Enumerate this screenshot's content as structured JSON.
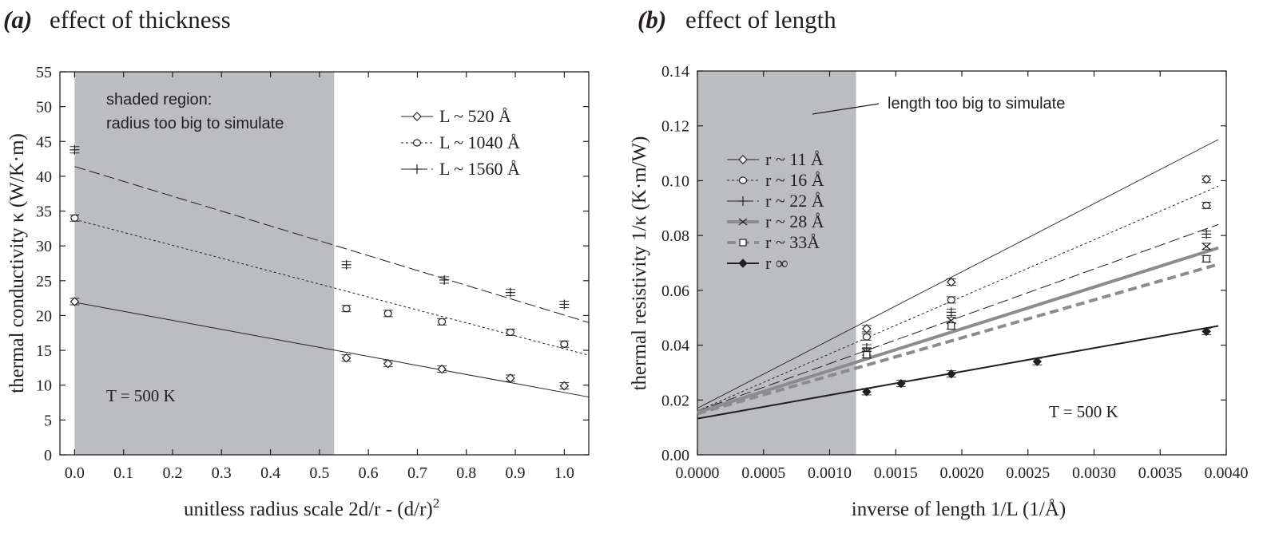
{
  "chart_data": [
    {
      "type": "scatter",
      "panel_letter": "(a)",
      "title": "effect of thickness",
      "xlabel": "unitless radius scale 2d/r - (d/r)",
      "xlabel_sup": "2",
      "ylabel": "thermal conductivity κ (W/K·m)",
      "xlim": [
        -0.03,
        1.05
      ],
      "ylim": [
        0,
        55
      ],
      "xticks": [
        "0.0",
        "0.1",
        "0.2",
        "0.3",
        "0.4",
        "0.5",
        "0.6",
        "0.7",
        "0.8",
        "0.9",
        "1.0"
      ],
      "yticks": [
        "0",
        "5",
        "10",
        "15",
        "20",
        "25",
        "30",
        "35",
        "40",
        "45",
        "50",
        "55"
      ],
      "shaded_region": {
        "x_from": 0.0,
        "x_to": 0.53,
        "label_lines": [
          "shaded region:",
          "radius too big to simulate"
        ]
      },
      "annotation": "T = 500 K",
      "series": [
        {
          "name": "L ~ 520 Å",
          "marker": "diamond",
          "dash": "solid",
          "x": [
            0.0,
            0.555,
            0.64,
            0.75,
            0.89,
            1.0
          ],
          "y": [
            22.0,
            13.9,
            13.1,
            12.3,
            11.0,
            9.9
          ],
          "fit": [
            [
              0.0,
              21.9
            ],
            [
              1.05,
              8.3
            ]
          ]
        },
        {
          "name": "L ~ 1040 Å",
          "marker": "circle",
          "dash": "dotted",
          "x": [
            0.0,
            0.555,
            0.64,
            0.75,
            0.89,
            1.0
          ],
          "y": [
            34.0,
            21.0,
            20.3,
            19.1,
            17.6,
            15.9
          ],
          "fit": [
            [
              0.0,
              33.8
            ],
            [
              1.05,
              14.3
            ]
          ]
        },
        {
          "name": "L ~ 1560 Å",
          "marker": "plus",
          "dash": "dashed",
          "x": [
            0.0,
            0.555,
            0.755,
            0.89,
            1.0
          ],
          "y": [
            43.8,
            27.3,
            25.1,
            23.3,
            21.6
          ],
          "fit": [
            [
              0.0,
              41.4
            ],
            [
              1.05,
              19.0
            ]
          ]
        }
      ]
    },
    {
      "type": "scatter",
      "panel_letter": "(b)",
      "title": "effect of length",
      "xlabel": "inverse of length 1/L (1/Å)",
      "ylabel": "thermal resistivity 1/κ (K·m/W)",
      "xlim": [
        0,
        0.004
      ],
      "ylim": [
        0,
        0.14
      ],
      "xticks": [
        "0.0000",
        "0.0005",
        "0.0010",
        "0.0015",
        "0.0020",
        "0.0025",
        "0.0030",
        "0.0035",
        "0.0040"
      ],
      "yticks": [
        "0.00",
        "0.02",
        "0.04",
        "0.06",
        "0.08",
        "0.10",
        "0.12",
        "0.14"
      ],
      "shaded_region": {
        "x_from": 0.0,
        "x_to": 0.0012,
        "label": "length too big to simulate"
      },
      "annotation": "T = 500 K",
      "series": [
        {
          "name": "r ~ 11 Å",
          "marker": "diamond",
          "dash": "solid-thin",
          "x": [
            0.00128,
            0.00192,
            0.00385
          ],
          "y": [
            0.046,
            0.063,
            0.1005
          ],
          "fit": [
            [
              0.0,
              0.017
            ],
            [
              0.00394,
              0.115
            ]
          ]
        },
        {
          "name": "r ~ 16 Å",
          "marker": "circle",
          "dash": "dotted",
          "x": [
            0.00128,
            0.00192,
            0.00385
          ],
          "y": [
            0.043,
            0.0565,
            0.091
          ],
          "fit": [
            [
              0.0,
              0.016
            ],
            [
              0.00394,
              0.098
            ]
          ]
        },
        {
          "name": "r ~ 22 Å",
          "marker": "plus",
          "dash": "dashed",
          "x": [
            0.00128,
            0.00192,
            0.00385
          ],
          "y": [
            0.039,
            0.052,
            0.0805
          ],
          "fit": [
            [
              0.0,
              0.016
            ],
            [
              0.00394,
              0.084
            ]
          ]
        },
        {
          "name": "r ~ 28 Å",
          "marker": "cross",
          "dash": "thick-gray",
          "x": [
            0.00128,
            0.00192,
            0.00385
          ],
          "y": [
            0.0375,
            0.049,
            0.076
          ],
          "fit": [
            [
              0.0,
              0.0155
            ],
            [
              0.00394,
              0.0755
            ]
          ]
        },
        {
          "name": "r ~ 33Å",
          "marker": "square",
          "dash": "thick-gray-dashed",
          "x": [
            0.00128,
            0.00192,
            0.00385
          ],
          "y": [
            0.0365,
            0.047,
            0.0715
          ],
          "fit": [
            [
              0.0,
              0.015
            ],
            [
              0.00394,
              0.0695
            ]
          ]
        },
        {
          "name": "r   ∞",
          "marker": "filled-diamond",
          "dash": "solid-thick",
          "x": [
            0.00128,
            0.00154,
            0.00192,
            0.00257,
            0.00385
          ],
          "y": [
            0.023,
            0.026,
            0.0295,
            0.034,
            0.045
          ],
          "fit": [
            [
              0.0,
              0.0132
            ],
            [
              0.00394,
              0.047
            ]
          ]
        }
      ]
    }
  ]
}
